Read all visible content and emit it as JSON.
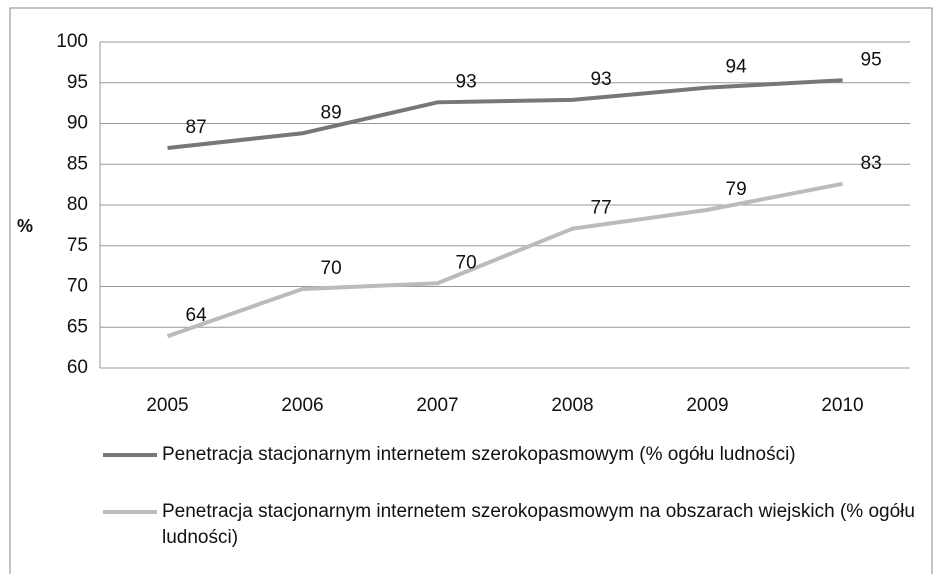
{
  "chart_data": {
    "type": "line",
    "categories": [
      "2005",
      "2006",
      "2007",
      "2008",
      "2009",
      "2010"
    ],
    "y_label": "%",
    "ylim": [
      60,
      100
    ],
    "yticks": [
      60,
      65,
      70,
      75,
      80,
      85,
      90,
      95,
      100
    ],
    "grid": true,
    "legend": "bottom",
    "series": [
      {
        "name": "Penetracja stacjonarnym internetem szerokopasmowym (% ogółu ludności)",
        "color": "#777777",
        "values": [
          87.0,
          88.8,
          92.6,
          92.9,
          94.4,
          95.3
        ],
        "value_labels": [
          "87",
          "89",
          "93",
          "93",
          "94",
          "95"
        ]
      },
      {
        "name": "Penetracja stacjonarnym internetem szerokopasmowym na obszarach wiejskich (% ogółu ludności)",
        "color": "#bbbbbb",
        "values": [
          63.9,
          69.7,
          70.4,
          77.1,
          79.4,
          82.6
        ],
        "value_labels": [
          "64",
          "70",
          "70",
          "77",
          "79",
          "83"
        ]
      }
    ]
  }
}
